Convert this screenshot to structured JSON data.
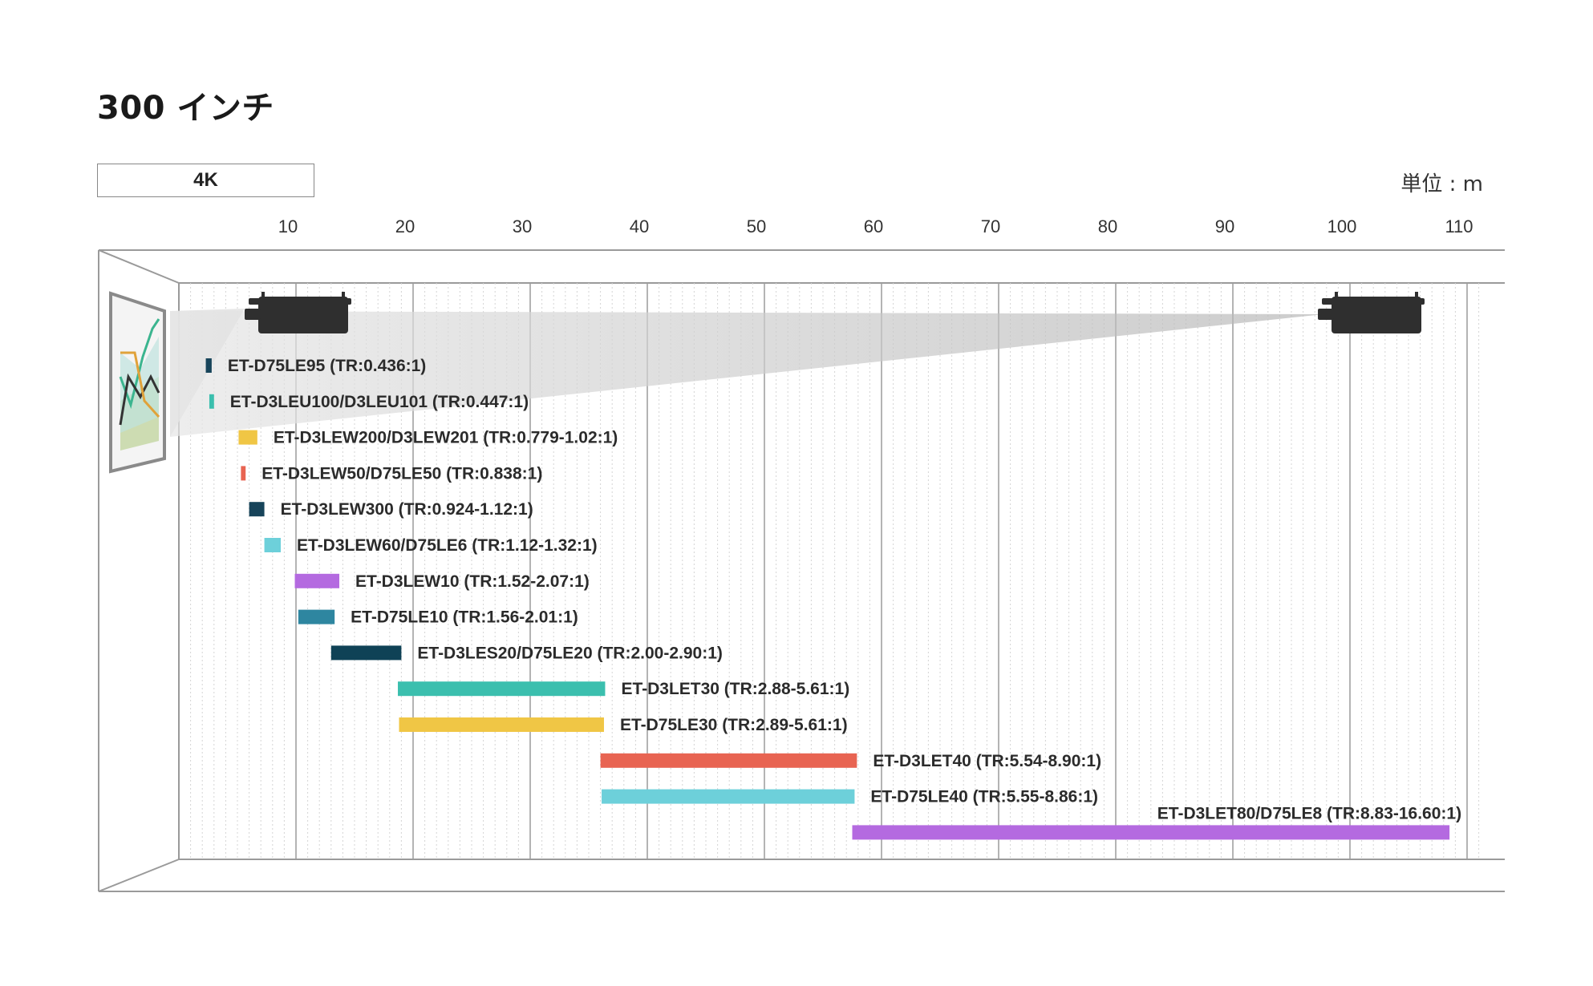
{
  "header": {
    "title": "300 インチ",
    "resolution_tab": "4K",
    "unit_label": "単位 : m"
  },
  "chart_data": {
    "type": "bar",
    "orientation": "horizontal-range",
    "title": "300 インチ",
    "xlabel": "",
    "ylabel": "",
    "unit": "m",
    "xlim": [
      0,
      112
    ],
    "xticks": [
      10,
      20,
      30,
      40,
      50,
      60,
      70,
      80,
      90,
      100,
      110
    ],
    "grid": true,
    "series": [
      {
        "label": "ET-D75LE95 (TR:0.436:1)",
        "start": 2.3,
        "end": 2.8,
        "color": "#17445a"
      },
      {
        "label": "ET-D3LEU100/D3LEU101 (TR:0.447:1)",
        "start": 2.6,
        "end": 3.0,
        "color": "#3bbfae"
      },
      {
        "label": "ET-D3LEW200/D3LEW201 (TR:0.779-1.02:1)",
        "start": 5.1,
        "end": 6.7,
        "color": "#f0c645"
      },
      {
        "label": "ET-D3LEW50/D75LE50 (TR:0.838:1)",
        "start": 5.3,
        "end": 5.7,
        "color": "#e86452"
      },
      {
        "label": "ET-D3LEW300 (TR:0.924-1.12:1)",
        "start": 6.0,
        "end": 7.3,
        "color": "#17445a"
      },
      {
        "label": "ET-D3LEW60/D75LE6 (TR:1.12-1.32:1)",
        "start": 7.3,
        "end": 8.7,
        "color": "#6dd0da"
      },
      {
        "label": "ET-D3LEW10 (TR:1.52-2.07:1)",
        "start": 9.9,
        "end": 13.7,
        "color": "#b46ae0"
      },
      {
        "label": "ET-D75LE10 (TR:1.56-2.01:1)",
        "start": 10.2,
        "end": 13.3,
        "color": "#2e86a0"
      },
      {
        "label": "ET-D3LES20/D75LE20 (TR:2.00-2.90:1)",
        "start": 13.0,
        "end": 19.0,
        "color": "#0f4256"
      },
      {
        "label": "ET-D3LET30 (TR:2.88-5.61:1)",
        "start": 18.7,
        "end": 36.4,
        "color": "#3bbfae"
      },
      {
        "label": "ET-D75LE30 (TR:2.89-5.61:1)",
        "start": 18.8,
        "end": 36.3,
        "color": "#f0c645"
      },
      {
        "label": "ET-D3LET40 (TR:5.54-8.90:1)",
        "start": 36.0,
        "end": 57.9,
        "color": "#e86452"
      },
      {
        "label": "ET-D75LE40 (TR:5.55-8.86:1)",
        "start": 36.1,
        "end": 57.7,
        "color": "#6dd0da"
      },
      {
        "label": "ET-D3LET80/D75LE8 (TR:8.83-16.60:1)",
        "start": 57.5,
        "end": 108.5,
        "color": "#b46ae0"
      }
    ]
  }
}
